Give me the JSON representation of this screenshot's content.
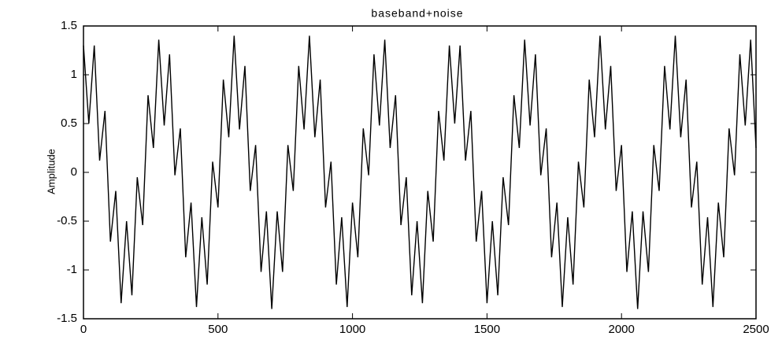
{
  "chart_data": {
    "type": "line",
    "title": "baseband+noise",
    "y_label": "Amplitude",
    "x": [
      0,
      20,
      40,
      60,
      80,
      100,
      120,
      140,
      160,
      180,
      200,
      220,
      240,
      260,
      280,
      300,
      320,
      340,
      360,
      380,
      400,
      420,
      440,
      460,
      480,
      500,
      520,
      540,
      560,
      580,
      600,
      620,
      640,
      660,
      680,
      700,
      720,
      740,
      760,
      780,
      800,
      820,
      840,
      860,
      880,
      900,
      920,
      940,
      960,
      980,
      1000,
      1020,
      1040,
      1060,
      1080,
      1100,
      1120,
      1140,
      1160,
      1180,
      1200,
      1220,
      1240,
      1260,
      1280,
      1300,
      1320,
      1340,
      1360,
      1380,
      1400,
      1420,
      1440,
      1460,
      1480,
      1500,
      1520,
      1540,
      1560,
      1580,
      1600,
      1620,
      1640,
      1660,
      1680,
      1700,
      1720,
      1740,
      1760,
      1780,
      1800,
      1820,
      1840,
      1860,
      1880,
      1900,
      1920,
      1940,
      1960,
      1980,
      2000,
      2020,
      2040,
      2060,
      2080,
      2100,
      2120,
      2140,
      2160,
      2180,
      2200,
      2220,
      2240,
      2260,
      2280,
      2300,
      2320,
      2340,
      2360,
      2380,
      2400,
      2420,
      2440,
      2460,
      2480,
      2500
    ],
    "values": [
      1.3,
      0.5,
      1.3,
      0.12,
      0.63,
      -0.71,
      -0.19,
      -1.34,
      -0.5,
      -1.26,
      -0.05,
      -0.54,
      0.79,
      0.25,
      1.36,
      0.48,
      1.21,
      -0.03,
      0.45,
      -0.87,
      -0.31,
      -1.38,
      -0.46,
      -1.15,
      0.11,
      -0.36,
      0.95,
      0.36,
      1.4,
      0.44,
      1.09,
      -0.19,
      0.28,
      -1.02,
      -0.4,
      -1.4,
      -0.4,
      -1.02,
      0.28,
      -0.19,
      1.09,
      0.44,
      1.4,
      0.36,
      0.95,
      -0.36,
      0.11,
      -1.15,
      -0.46,
      -1.38,
      -0.31,
      -0.87,
      0.45,
      -0.03,
      1.21,
      0.48,
      1.36,
      0.25,
      0.79,
      -0.54,
      -0.05,
      -1.26,
      -0.5,
      -1.34,
      -0.19,
      -0.71,
      0.63,
      0.12,
      1.3,
      0.5,
      1.3,
      0.12,
      0.63,
      -0.71,
      -0.19,
      -1.34,
      -0.5,
      -1.26,
      -0.05,
      -0.54,
      0.79,
      0.25,
      1.36,
      0.48,
      1.21,
      -0.03,
      0.45,
      -0.87,
      -0.31,
      -1.38,
      -0.46,
      -1.15,
      0.11,
      -0.36,
      0.95,
      0.36,
      1.4,
      0.44,
      1.09,
      -0.19,
      0.28,
      -1.02,
      -0.4,
      -1.4,
      -0.4,
      -1.02,
      0.28,
      -0.19,
      1.09,
      0.44,
      1.4,
      0.36,
      0.95,
      -0.36,
      0.11,
      -1.15,
      -0.46,
      -1.38,
      -0.31,
      -0.87,
      0.45,
      -0.03,
      1.21,
      0.48,
      1.36,
      0.25
    ],
    "color": "#000000",
    "xlim": [
      0,
      2500
    ],
    "xticks": [
      0,
      500,
      1000,
      1500,
      2000,
      2500
    ],
    "ylim": [
      -1.5,
      1.5
    ],
    "yticks": [
      -1.5,
      -1,
      -0.5,
      0,
      0.5,
      1,
      1.5
    ],
    "grid": false
  }
}
